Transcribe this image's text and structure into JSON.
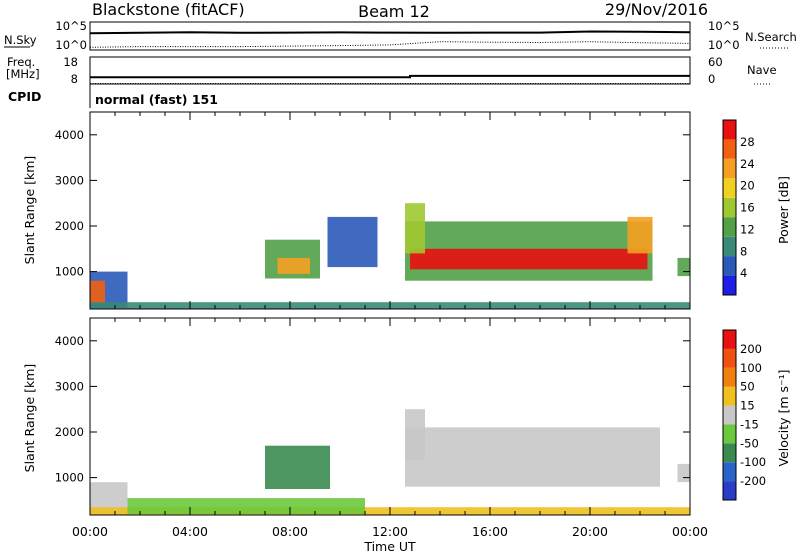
{
  "header": {
    "title": "Blackstone (fitACF)",
    "beam": "Beam 12",
    "date": "29/Nov/2016"
  },
  "top_panels": {
    "nsky": {
      "label": "N.Sky",
      "max_label": "10^5",
      "min_label": "10^0"
    },
    "nsearch": {
      "label": "N.Search",
      "max_label": "10^5",
      "min_label": "10^0"
    },
    "freq": {
      "label_line1": "Freq.",
      "label_line2": "[MHz]",
      "max_label": "18",
      "min_label": "8"
    },
    "nave": {
      "label": "Nave",
      "max_label": "60",
      "min_label": "0"
    },
    "cpid": {
      "label": "CPID",
      "value_text": "normal (fast) 151"
    }
  },
  "time_axis": {
    "label": "Time UT",
    "ticks": [
      "00:00",
      "04:00",
      "08:00",
      "12:00",
      "16:00",
      "20:00",
      "00:00"
    ]
  },
  "range_axis": {
    "label": "Slant Range [km]",
    "ticks": [
      "1000",
      "2000",
      "3000",
      "4000"
    ]
  },
  "power_colorbar": {
    "label": "Power [dB]",
    "ticks": [
      "4",
      "8",
      "12",
      "16",
      "20",
      "24",
      "28"
    ],
    "colors": [
      "#1e1ee6",
      "#2a5ab8",
      "#3a8a78",
      "#52a048",
      "#a0c830",
      "#f0d020",
      "#f5a020",
      "#f06010",
      "#e81010"
    ]
  },
  "velocity_colorbar": {
    "label": "Velocity [m s⁻¹]",
    "ticks": [
      "200",
      "100",
      "50",
      "15",
      "-15",
      "-50",
      "-100",
      "-200"
    ],
    "colors": [
      "#2a3cc8",
      "#2a64c8",
      "#3a8a50",
      "#6cc83c",
      "#c8c8c8",
      "#f0c020",
      "#f08010",
      "#f05010",
      "#e81010"
    ]
  },
  "chart_data": [
    {
      "type": "line",
      "title": "N.Sky / N.Search",
      "x": [
        0,
        2,
        4,
        6,
        8,
        10,
        12,
        14,
        16,
        18,
        20,
        22,
        24
      ],
      "series": [
        {
          "name": "N.Sky",
          "values": [
            1000,
            1200,
            1500,
            1200,
            1300,
            1400,
            1300,
            1200,
            1300,
            1300,
            2000,
            1800,
            1500
          ]
        },
        {
          "name": "N.Search",
          "values": [
            3,
            4,
            4,
            4,
            5,
            6,
            8,
            30,
            25,
            22,
            30,
            20,
            15
          ]
        }
      ],
      "ylim": [
        1,
        100000
      ],
      "yscale": "log"
    },
    {
      "type": "line",
      "title": "Freq. / Nave",
      "series": [
        {
          "name": "Freq. [MHz]",
          "x": [
            0,
            12.8,
            12.8,
            24
          ],
          "values": [
            10.5,
            10.5,
            11.0,
            11.0
          ]
        },
        {
          "name": "Nave",
          "x": [
            0,
            24
          ],
          "values": [
            1,
            1
          ]
        }
      ],
      "ylim_freq": [
        8,
        18
      ],
      "ylim_nave": [
        0,
        60
      ]
    },
    {
      "type": "heatmap",
      "title": "Power [dB]",
      "xlabel": "Time UT",
      "ylabel": "Slant Range [km]",
      "xlim": [
        0,
        24
      ],
      "ylim": [
        180,
        4500
      ],
      "clim": [
        0,
        30
      ],
      "regions": [
        {
          "t0": 0.0,
          "t1": 1.5,
          "r0": 200,
          "r1": 1000,
          "v": 6
        },
        {
          "t0": 0.0,
          "t1": 0.6,
          "r0": 300,
          "r1": 800,
          "v": 26
        },
        {
          "t0": 0.0,
          "t1": 24.0,
          "r0": 180,
          "r1": 330,
          "v": 8
        },
        {
          "t0": 7.0,
          "t1": 9.2,
          "r0": 850,
          "r1": 1700,
          "v": 12
        },
        {
          "t0": 7.5,
          "t1": 8.8,
          "r0": 950,
          "r1": 1300,
          "v": 20
        },
        {
          "t0": 9.5,
          "t1": 11.5,
          "r0": 1100,
          "r1": 2200,
          "v": 6
        },
        {
          "t0": 12.6,
          "t1": 22.5,
          "r0": 800,
          "r1": 2100,
          "v": 12
        },
        {
          "t0": 12.8,
          "t1": 22.3,
          "r0": 1050,
          "r1": 1500,
          "v": 27
        },
        {
          "t0": 12.6,
          "t1": 13.4,
          "r0": 1400,
          "r1": 2500,
          "v": 14
        },
        {
          "t0": 21.5,
          "t1": 22.5,
          "r0": 1400,
          "r1": 2200,
          "v": 20
        },
        {
          "t0": 23.5,
          "t1": 24.0,
          "r0": 900,
          "r1": 1300,
          "v": 10
        }
      ]
    },
    {
      "type": "heatmap",
      "title": "Velocity [m s⁻¹]",
      "xlabel": "Time UT",
      "ylabel": "Slant Range [km]",
      "xlim": [
        0,
        24
      ],
      "ylim": [
        180,
        4500
      ],
      "clim": [
        -200,
        200
      ],
      "regions": [
        {
          "t0": 0.0,
          "t1": 1.5,
          "r0": 200,
          "r1": 900,
          "v": 0
        },
        {
          "t0": 0.0,
          "t1": 24.0,
          "r0": 180,
          "r1": 350,
          "v": 30
        },
        {
          "t0": 1.5,
          "t1": 11.0,
          "r0": 200,
          "r1": 550,
          "v": -30
        },
        {
          "t0": 7.0,
          "t1": 9.6,
          "r0": 750,
          "r1": 1700,
          "v": -75
        },
        {
          "t0": 12.6,
          "t1": 22.8,
          "r0": 800,
          "r1": 2100,
          "v": 0
        },
        {
          "t0": 12.6,
          "t1": 13.4,
          "r0": 1400,
          "r1": 2500,
          "v": 0
        },
        {
          "t0": 23.5,
          "t1": 24.0,
          "r0": 900,
          "r1": 1300,
          "v": 0
        }
      ]
    }
  ]
}
